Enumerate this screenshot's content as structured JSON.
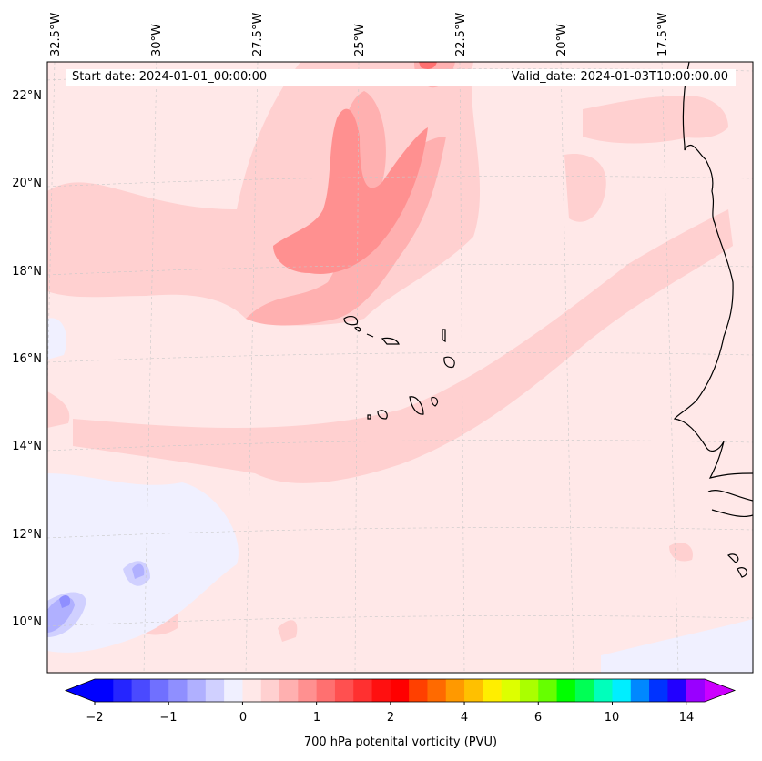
{
  "header": {
    "start_date": "Start date: 2024-01-01_00:00:00",
    "valid_date": "Valid_date: 2024-01-03T10:00:00.00"
  },
  "longitude_labels": [
    "32.5°W",
    "30°W",
    "27.5°W",
    "25°W",
    "22.5°W",
    "20°W",
    "17.5°W"
  ],
  "latitude_labels": [
    "22°N",
    "20°N",
    "18°N",
    "16°N",
    "14°N",
    "12°N",
    "10°N"
  ],
  "colorbar": {
    "label": "700 hPa potenital vorticity (PVU)",
    "ticks": [
      "−2",
      "−1",
      "0",
      "1",
      "2",
      "4",
      "6",
      "10",
      "14"
    ],
    "under_color": "#0000ff",
    "over_color": "#cc00ff",
    "colors": [
      "#0000ff",
      "#2525ff",
      "#4a4aff",
      "#7070ff",
      "#8f8fff",
      "#b0b0ff",
      "#d0d0ff",
      "#f0f0ff",
      "#ffe8e8",
      "#ffd0d0",
      "#ffb0b0",
      "#ff9090",
      "#ff7070",
      "#ff5050",
      "#ff3030",
      "#ff1010",
      "#ff0000",
      "#ff4000",
      "#ff6a00",
      "#ff9900",
      "#ffc000",
      "#ffee00",
      "#ddff00",
      "#aaff00",
      "#66ff00",
      "#00ff00",
      "#00ff55",
      "#00ffbb",
      "#00eeff",
      "#0088ff",
      "#0033ff",
      "#2200ff",
      "#9900ff"
    ]
  }
}
